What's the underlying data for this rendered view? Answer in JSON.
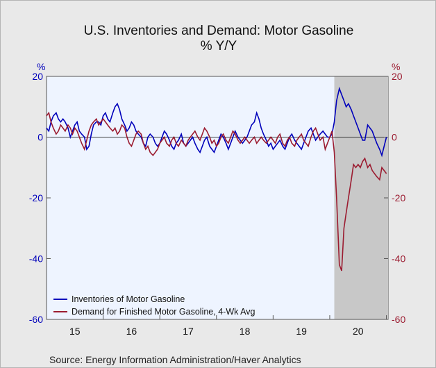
{
  "chart_data": {
    "type": "line",
    "title": "U.S. Inventories and Demand: Motor Gasoline",
    "subtitle": "% Y/Y",
    "left_axis": {
      "unit": "%",
      "ylim": [
        -60,
        20
      ],
      "ticks": [
        20,
        0,
        -20,
        -40,
        -60
      ]
    },
    "right_axis": {
      "unit": "%",
      "ylim": [
        -60,
        20
      ],
      "ticks": [
        20,
        0,
        -20,
        -40,
        -60
      ]
    },
    "x_axis": {
      "range": [
        2015.0,
        2021.03
      ],
      "tick_labels": [
        "15",
        "16",
        "17",
        "18",
        "19",
        "20"
      ],
      "tick_years": [
        2015,
        2016,
        2017,
        2018,
        2019,
        2020,
        2021
      ]
    },
    "recession_shading": {
      "start": 2020.08,
      "end": 2021.03
    },
    "zero_line": true,
    "grid": false,
    "legend": {
      "placement": "bottom-left"
    },
    "series": [
      {
        "name": "Inventories of Motor Gasoline",
        "axis": "left",
        "color": "#0000bb",
        "x": [
          2015.0,
          2015.04,
          2015.08,
          2015.12,
          2015.17,
          2015.21,
          2015.25,
          2015.29,
          2015.33,
          2015.38,
          2015.42,
          2015.46,
          2015.5,
          2015.54,
          2015.58,
          2015.62,
          2015.67,
          2015.71,
          2015.75,
          2015.79,
          2015.83,
          2015.88,
          2015.92,
          2015.96,
          2016.0,
          2016.04,
          2016.08,
          2016.12,
          2016.17,
          2016.21,
          2016.25,
          2016.29,
          2016.33,
          2016.38,
          2016.42,
          2016.46,
          2016.5,
          2016.54,
          2016.58,
          2016.62,
          2016.67,
          2016.71,
          2016.75,
          2016.79,
          2016.83,
          2016.88,
          2016.92,
          2016.96,
          2017.0,
          2017.04,
          2017.08,
          2017.12,
          2017.17,
          2017.21,
          2017.25,
          2017.29,
          2017.33,
          2017.38,
          2017.42,
          2017.46,
          2017.5,
          2017.54,
          2017.58,
          2017.62,
          2017.67,
          2017.71,
          2017.75,
          2017.79,
          2017.83,
          2017.88,
          2017.92,
          2017.96,
          2018.0,
          2018.04,
          2018.08,
          2018.12,
          2018.17,
          2018.21,
          2018.25,
          2018.29,
          2018.33,
          2018.38,
          2018.42,
          2018.46,
          2018.5,
          2018.54,
          2018.58,
          2018.62,
          2018.67,
          2018.71,
          2018.75,
          2018.79,
          2018.83,
          2018.88,
          2018.92,
          2018.96,
          2019.0,
          2019.04,
          2019.08,
          2019.12,
          2019.17,
          2019.21,
          2019.25,
          2019.29,
          2019.33,
          2019.38,
          2019.42,
          2019.46,
          2019.5,
          2019.54,
          2019.58,
          2019.62,
          2019.67,
          2019.71,
          2019.75,
          2019.79,
          2019.83,
          2019.88,
          2019.92,
          2019.96,
          2020.0,
          2020.04,
          2020.08,
          2020.12,
          2020.17,
          2020.21,
          2020.25,
          2020.29,
          2020.33,
          2020.38,
          2020.42,
          2020.46,
          2020.5,
          2020.54,
          2020.58,
          2020.62,
          2020.67,
          2020.71,
          2020.75,
          2020.79,
          2020.83,
          2020.88,
          2020.92,
          2020.96,
          2021.0
        ],
        "values": [
          3,
          2,
          5,
          7,
          8,
          6,
          5,
          6,
          5,
          3,
          0,
          2,
          4,
          5,
          2,
          1,
          0,
          -4,
          -3,
          1,
          4,
          5,
          5,
          4,
          7,
          8,
          6,
          5,
          8,
          10,
          11,
          9,
          6,
          4,
          2,
          3,
          5,
          4,
          2,
          1,
          0,
          -2,
          -3,
          0,
          1,
          0,
          -2,
          -3,
          -2,
          0,
          2,
          1,
          -1,
          -3,
          -4,
          -2,
          -1,
          1,
          -2,
          -3,
          -2,
          -1,
          0,
          -2,
          -4,
          -5,
          -3,
          -1,
          0,
          -3,
          -4,
          -5,
          -3,
          -1,
          1,
          0,
          -2,
          -4,
          -2,
          0,
          2,
          0,
          -1,
          -2,
          -1,
          0,
          2,
          4,
          5,
          8,
          6,
          3,
          1,
          -1,
          -3,
          -2,
          -4,
          -3,
          -2,
          -1,
          -3,
          -4,
          -2,
          0,
          1,
          -1,
          -2,
          -3,
          -4,
          -2,
          0,
          2,
          3,
          1,
          -1,
          0,
          1,
          2,
          1,
          0,
          0,
          1,
          5,
          12,
          16,
          14,
          12,
          10,
          11,
          9,
          7,
          5,
          3,
          1,
          -1,
          -1,
          4,
          3,
          2,
          0,
          -2,
          -4,
          -6,
          -3,
          0
        ]
      },
      {
        "name": "Demand for Finished Motor Gasoline, 4-Wk Avg",
        "axis": "right",
        "color": "#9b1b30",
        "x": [
          2015.0,
          2015.04,
          2015.08,
          2015.12,
          2015.17,
          2015.21,
          2015.25,
          2015.29,
          2015.33,
          2015.38,
          2015.42,
          2015.46,
          2015.5,
          2015.54,
          2015.58,
          2015.62,
          2015.67,
          2015.71,
          2015.75,
          2015.79,
          2015.83,
          2015.88,
          2015.92,
          2015.96,
          2016.0,
          2016.04,
          2016.08,
          2016.12,
          2016.17,
          2016.21,
          2016.25,
          2016.29,
          2016.33,
          2016.38,
          2016.42,
          2016.46,
          2016.5,
          2016.54,
          2016.58,
          2016.62,
          2016.67,
          2016.71,
          2016.75,
          2016.79,
          2016.83,
          2016.88,
          2016.92,
          2016.96,
          2017.0,
          2017.04,
          2017.08,
          2017.12,
          2017.17,
          2017.21,
          2017.25,
          2017.29,
          2017.33,
          2017.38,
          2017.42,
          2017.46,
          2017.5,
          2017.54,
          2017.58,
          2017.62,
          2017.67,
          2017.71,
          2017.75,
          2017.79,
          2017.83,
          2017.88,
          2017.92,
          2017.96,
          2018.0,
          2018.04,
          2018.08,
          2018.12,
          2018.17,
          2018.21,
          2018.25,
          2018.29,
          2018.33,
          2018.38,
          2018.42,
          2018.46,
          2018.5,
          2018.54,
          2018.58,
          2018.62,
          2018.67,
          2018.71,
          2018.75,
          2018.79,
          2018.83,
          2018.88,
          2018.92,
          2018.96,
          2019.0,
          2019.04,
          2019.08,
          2019.12,
          2019.17,
          2019.21,
          2019.25,
          2019.29,
          2019.33,
          2019.38,
          2019.42,
          2019.46,
          2019.5,
          2019.54,
          2019.58,
          2019.62,
          2019.67,
          2019.71,
          2019.75,
          2019.79,
          2019.83,
          2019.88,
          2019.92,
          2019.96,
          2020.0,
          2020.04,
          2020.08,
          2020.12,
          2020.17,
          2020.21,
          2020.25,
          2020.29,
          2020.33,
          2020.38,
          2020.42,
          2020.46,
          2020.5,
          2020.54,
          2020.58,
          2020.62,
          2020.67,
          2020.71,
          2020.75,
          2020.79,
          2020.83,
          2020.88,
          2020.92,
          2020.96,
          2021.0
        ],
        "values": [
          7,
          8,
          5,
          3,
          1,
          2,
          4,
          3,
          2,
          4,
          3,
          1,
          3,
          2,
          0,
          -2,
          -4,
          -1,
          2,
          4,
          5,
          6,
          4,
          5,
          6,
          5,
          4,
          3,
          2,
          3,
          1,
          2,
          4,
          3,
          0,
          -2,
          -3,
          -1,
          1,
          2,
          1,
          -2,
          -4,
          -3,
          -5,
          -6,
          -5,
          -4,
          -2,
          -1,
          0,
          -2,
          -3,
          -1,
          0,
          -2,
          -3,
          -1,
          -2,
          -3,
          -1,
          0,
          1,
          2,
          0,
          -1,
          1,
          3,
          2,
          0,
          -2,
          -1,
          -3,
          -2,
          0,
          1,
          -1,
          -2,
          0,
          2,
          1,
          -1,
          -2,
          -1,
          0,
          -1,
          -2,
          -1,
          0,
          -2,
          -1,
          0,
          -1,
          -2,
          -1,
          0,
          -1,
          -2,
          0,
          1,
          -2,
          -3,
          -1,
          0,
          -2,
          -3,
          -1,
          0,
          1,
          -1,
          -2,
          -3,
          0,
          2,
          3,
          1,
          -1,
          0,
          -4,
          -2,
          0,
          2,
          -5,
          -20,
          -42,
          -44,
          -30,
          -25,
          -20,
          -14,
          -9,
          -10,
          -9,
          -10,
          -8,
          -7,
          -10,
          -9,
          -11,
          -12,
          -13,
          -14,
          -10,
          -11,
          -12
        ]
      }
    ],
    "source": "Source:  Energy Information Administration/Haver Analytics"
  }
}
